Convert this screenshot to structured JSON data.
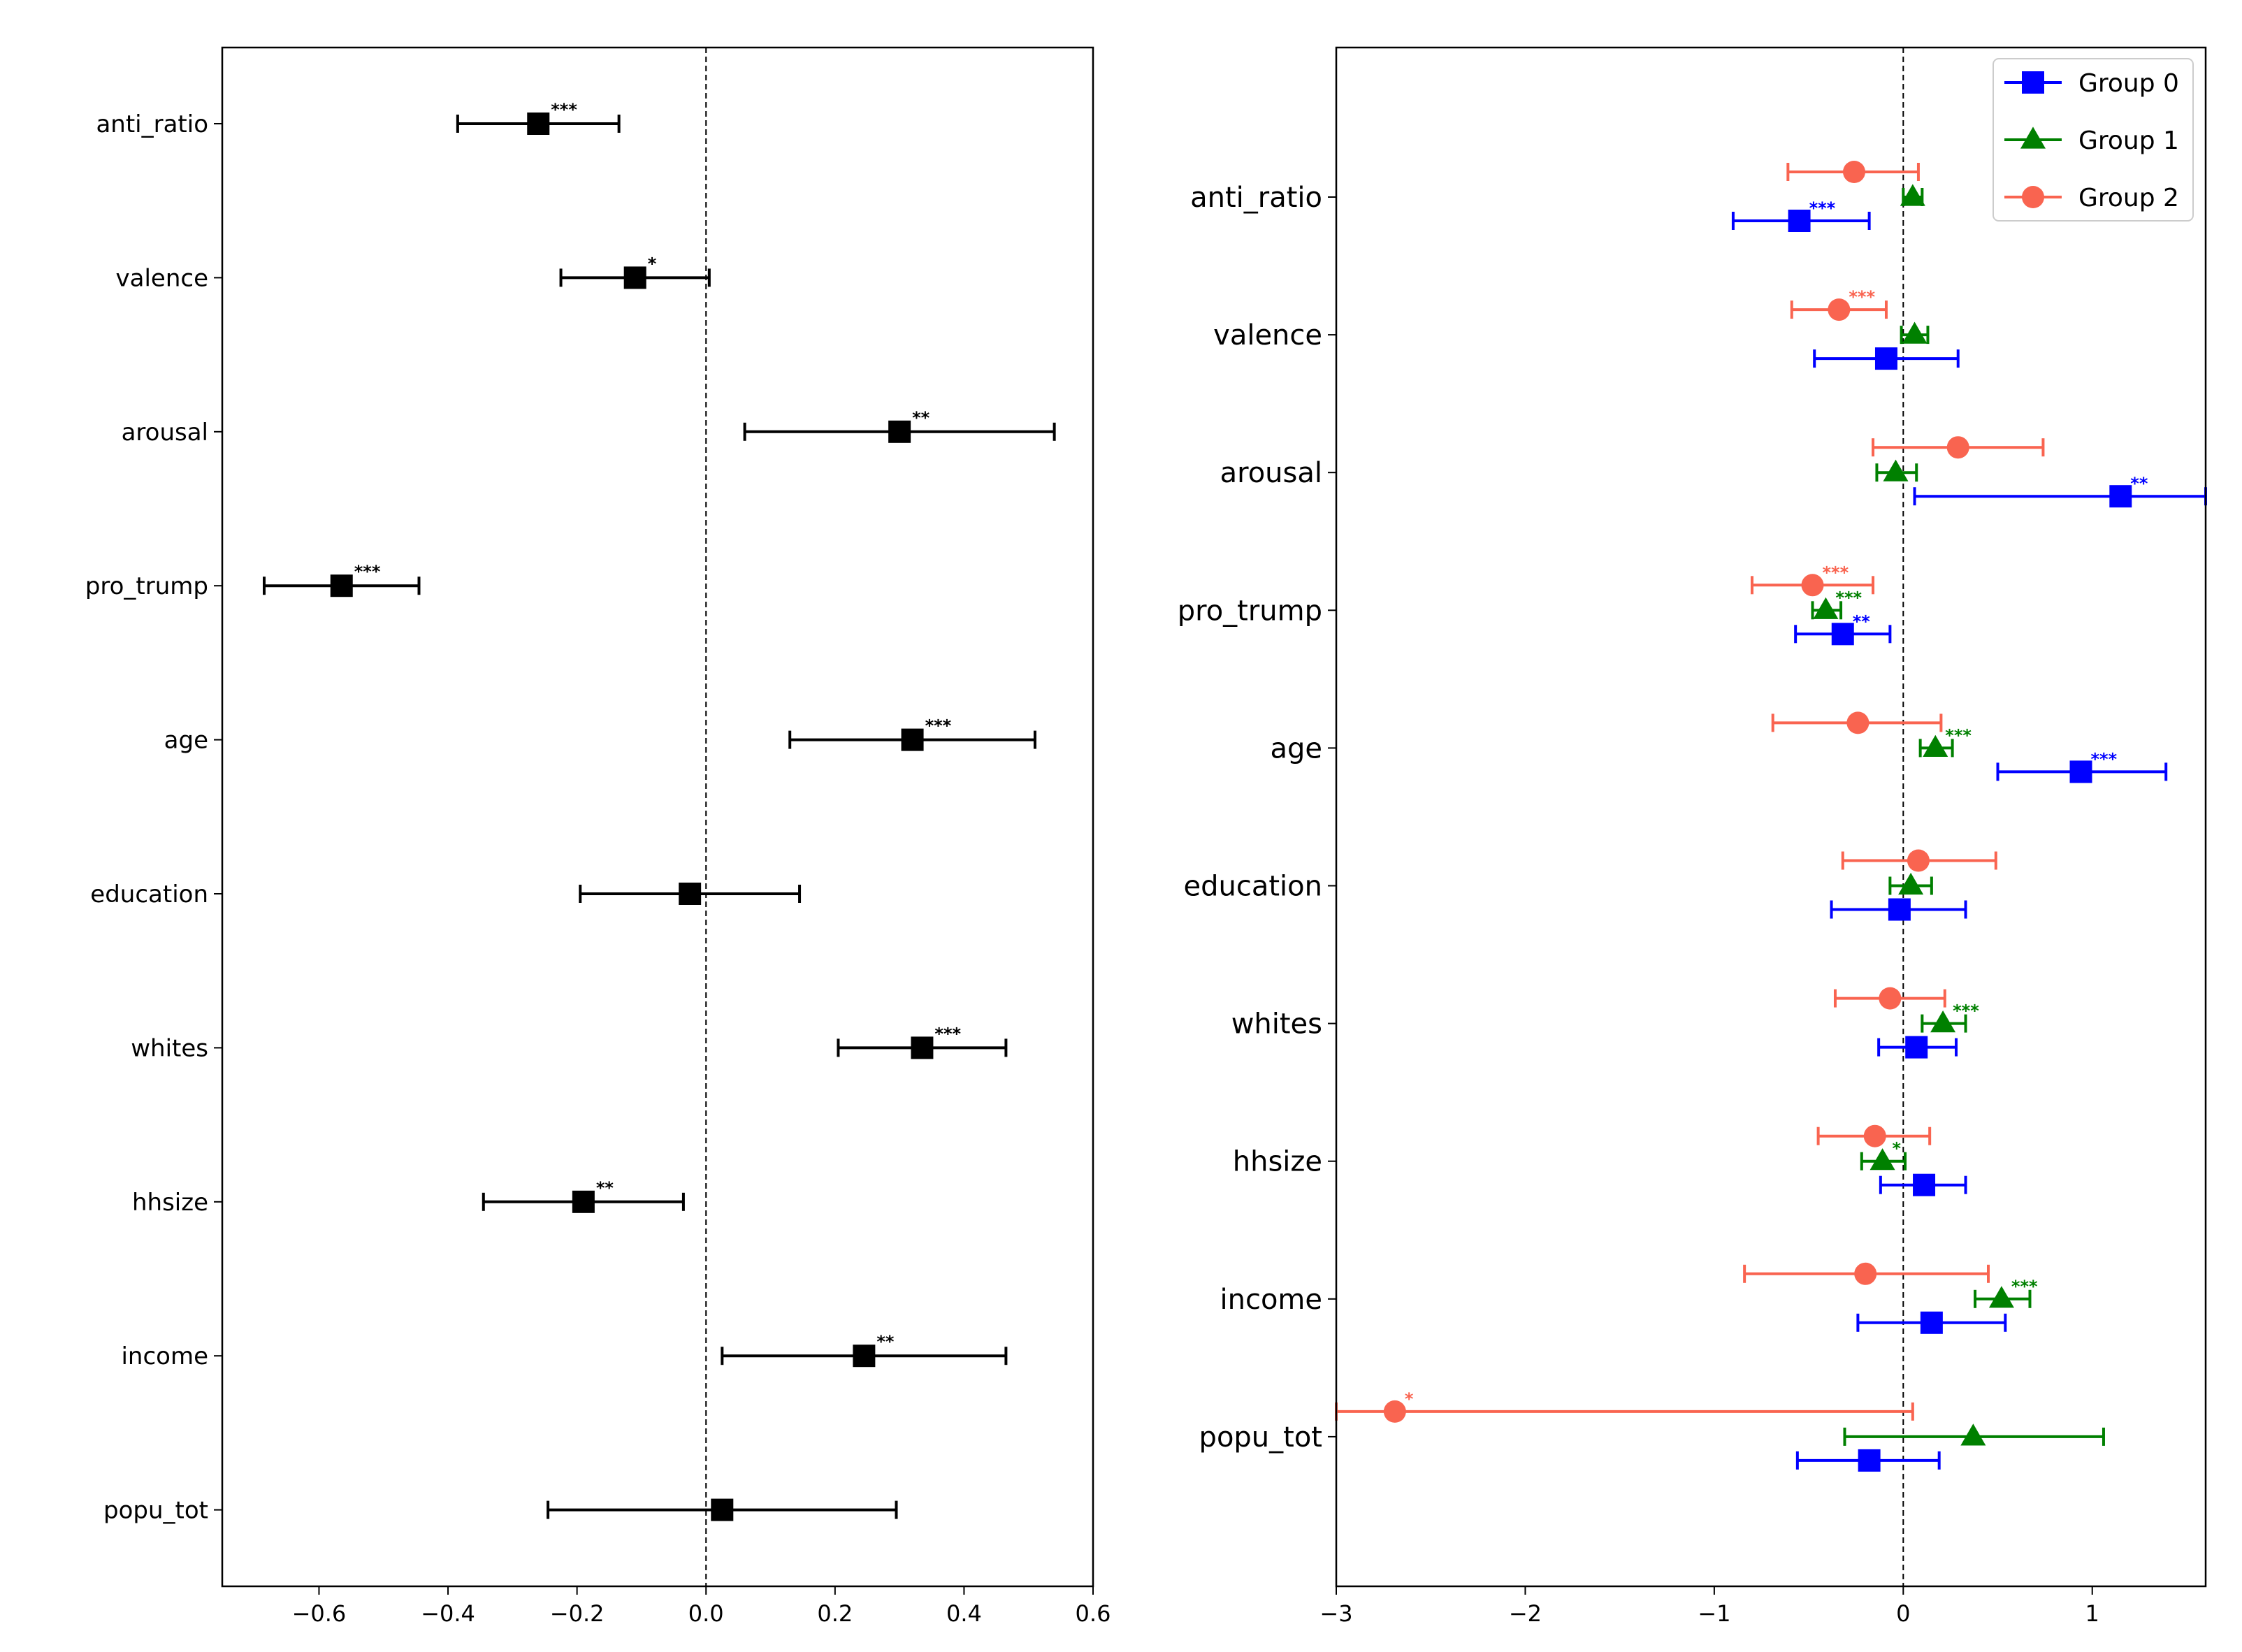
{
  "chart_data": [
    {
      "type": "forest",
      "title": "",
      "xlabel": "",
      "ylabel": "",
      "xlim": [
        -0.75,
        0.6
      ],
      "xticks": [
        -0.6,
        -0.4,
        -0.2,
        0.0,
        0.2,
        0.4,
        0.6
      ],
      "xtick_labels": [
        "−0.6",
        "−0.4",
        "−0.2",
        "0.0",
        "0.2",
        "0.4",
        "0.6"
      ],
      "reference_line": 0,
      "color": "#000000",
      "marker": "square",
      "variables": [
        "anti_ratio",
        "valence",
        "arousal",
        "pro_trump",
        "age",
        "education",
        "whites",
        "hhsize",
        "income",
        "popu_tot"
      ],
      "estimates": [
        {
          "var": "anti_ratio",
          "est": -0.26,
          "lo": -0.385,
          "hi": -0.135,
          "stars": "***"
        },
        {
          "var": "valence",
          "est": -0.11,
          "lo": -0.225,
          "hi": 0.005,
          "stars": "*"
        },
        {
          "var": "arousal",
          "est": 0.3,
          "lo": 0.06,
          "hi": 0.54,
          "stars": "**"
        },
        {
          "var": "pro_trump",
          "est": -0.565,
          "lo": -0.685,
          "hi": -0.445,
          "stars": "***"
        },
        {
          "var": "age",
          "est": 0.32,
          "lo": 0.13,
          "hi": 0.51,
          "stars": "***"
        },
        {
          "var": "education",
          "est": -0.025,
          "lo": -0.195,
          "hi": 0.145,
          "stars": ""
        },
        {
          "var": "whites",
          "est": 0.335,
          "lo": 0.205,
          "hi": 0.465,
          "stars": "***"
        },
        {
          "var": "hhsize",
          "est": -0.19,
          "lo": -0.345,
          "hi": -0.035,
          "stars": "**"
        },
        {
          "var": "income",
          "est": 0.245,
          "lo": 0.025,
          "hi": 0.465,
          "stars": "**"
        },
        {
          "var": "popu_tot",
          "est": 0.025,
          "lo": -0.245,
          "hi": 0.295,
          "stars": ""
        }
      ]
    },
    {
      "type": "forest",
      "title": "",
      "xlabel": "",
      "ylabel": "",
      "xlim": [
        -3,
        1.6
      ],
      "xticks": [
        -3,
        -2,
        -1,
        0,
        1
      ],
      "xtick_labels": [
        "−3",
        "−2",
        "−1",
        "0",
        "1"
      ],
      "reference_line": 0,
      "legend_position": "top-right",
      "variables": [
        "anti_ratio",
        "valence",
        "arousal",
        "pro_trump",
        "age",
        "education",
        "whites",
        "hhsize",
        "income",
        "popu_tot"
      ],
      "series": [
        {
          "name": "Group 0",
          "color": "#0000ff",
          "marker": "square",
          "estimates": [
            {
              "var": "anti_ratio",
              "est": -0.55,
              "lo": -0.9,
              "hi": -0.18,
              "stars": "***"
            },
            {
              "var": "valence",
              "est": -0.09,
              "lo": -0.47,
              "hi": 0.29,
              "stars": ""
            },
            {
              "var": "arousal",
              "est": 1.15,
              "lo": 0.06,
              "hi": 1.6,
              "stars": "**"
            },
            {
              "var": "pro_trump",
              "est": -0.32,
              "lo": -0.57,
              "hi": -0.07,
              "stars": "**"
            },
            {
              "var": "age",
              "est": 0.94,
              "lo": 0.5,
              "hi": 1.39,
              "stars": "***"
            },
            {
              "var": "education",
              "est": -0.02,
              "lo": -0.38,
              "hi": 0.33,
              "stars": ""
            },
            {
              "var": "whites",
              "est": 0.07,
              "lo": -0.13,
              "hi": 0.28,
              "stars": ""
            },
            {
              "var": "hhsize",
              "est": 0.11,
              "lo": -0.12,
              "hi": 0.33,
              "stars": ""
            },
            {
              "var": "income",
              "est": 0.15,
              "lo": -0.24,
              "hi": 0.54,
              "stars": ""
            },
            {
              "var": "popu_tot",
              "est": -0.18,
              "lo": -0.56,
              "hi": 0.19,
              "stars": ""
            }
          ]
        },
        {
          "name": "Group 1",
          "color": "#008000",
          "marker": "triangle",
          "estimates": [
            {
              "var": "anti_ratio",
              "est": 0.05,
              "lo": 0.0,
              "hi": 0.1,
              "stars": ""
            },
            {
              "var": "valence",
              "est": 0.06,
              "lo": -0.01,
              "hi": 0.13,
              "stars": ""
            },
            {
              "var": "arousal",
              "est": -0.04,
              "lo": -0.14,
              "hi": 0.07,
              "stars": ""
            },
            {
              "var": "pro_trump",
              "est": -0.41,
              "lo": -0.48,
              "hi": -0.33,
              "stars": "***"
            },
            {
              "var": "age",
              "est": 0.17,
              "lo": 0.09,
              "hi": 0.26,
              "stars": "***"
            },
            {
              "var": "education",
              "est": 0.04,
              "lo": -0.07,
              "hi": 0.15,
              "stars": ""
            },
            {
              "var": "whites",
              "est": 0.21,
              "lo": 0.1,
              "hi": 0.33,
              "stars": "***"
            },
            {
              "var": "hhsize",
              "est": -0.11,
              "lo": -0.22,
              "hi": 0.01,
              "stars": "*"
            },
            {
              "var": "income",
              "est": 0.52,
              "lo": 0.38,
              "hi": 0.67,
              "stars": "***"
            },
            {
              "var": "popu_tot",
              "est": 0.37,
              "lo": -0.31,
              "hi": 1.06,
              "stars": ""
            }
          ]
        },
        {
          "name": "Group 2",
          "color": "#f96450",
          "marker": "circle",
          "estimates": [
            {
              "var": "anti_ratio",
              "est": -0.26,
              "lo": -0.61,
              "hi": 0.08,
              "stars": ""
            },
            {
              "var": "valence",
              "est": -0.34,
              "lo": -0.59,
              "hi": -0.09,
              "stars": "***"
            },
            {
              "var": "arousal",
              "est": 0.29,
              "lo": -0.16,
              "hi": 0.74,
              "stars": ""
            },
            {
              "var": "pro_trump",
              "est": -0.48,
              "lo": -0.8,
              "hi": -0.16,
              "stars": "***"
            },
            {
              "var": "age",
              "est": -0.24,
              "lo": -0.69,
              "hi": 0.2,
              "stars": ""
            },
            {
              "var": "education",
              "est": 0.08,
              "lo": -0.32,
              "hi": 0.49,
              "stars": ""
            },
            {
              "var": "whites",
              "est": -0.07,
              "lo": -0.36,
              "hi": 0.22,
              "stars": ""
            },
            {
              "var": "hhsize",
              "est": -0.15,
              "lo": -0.45,
              "hi": 0.14,
              "stars": ""
            },
            {
              "var": "income",
              "est": -0.2,
              "lo": -0.84,
              "hi": 0.45,
              "stars": ""
            },
            {
              "var": "popu_tot",
              "est": -2.69,
              "lo": -3.0,
              "hi": 0.05,
              "stars": "*"
            }
          ]
        }
      ]
    }
  ]
}
